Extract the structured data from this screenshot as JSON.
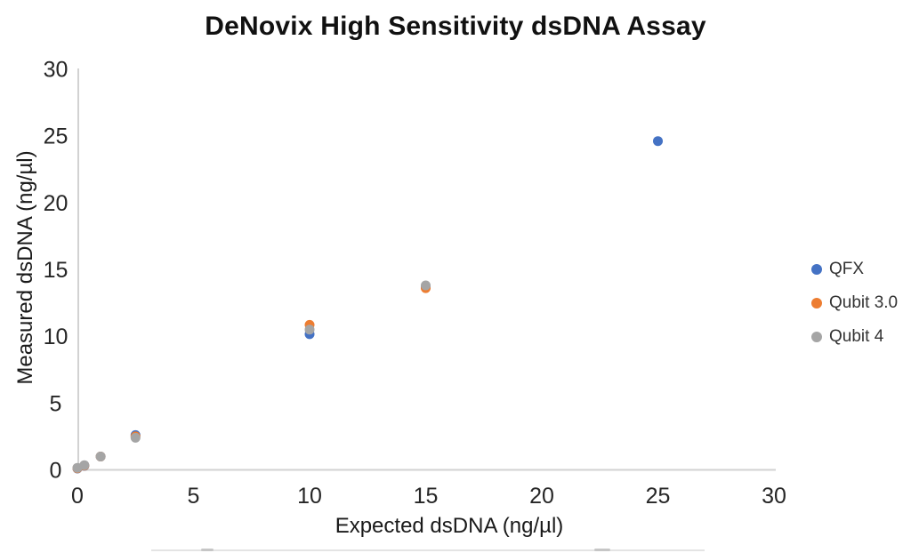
{
  "chart_data": {
    "type": "scatter",
    "title": "DeNovix High Sensitivity dsDNA Assay",
    "xlabel": "Expected dsDNA (ng/µl)",
    "ylabel": "Measured dsDNA (ng/µl)",
    "xlim": [
      0,
      30
    ],
    "ylim": [
      0,
      30
    ],
    "xticks": [
      0,
      5,
      10,
      15,
      20,
      25,
      30
    ],
    "yticks": [
      0,
      5,
      10,
      15,
      20,
      25,
      30
    ],
    "grid": false,
    "legend_position": "right",
    "axis_color": "#d2d2d2",
    "tick_label_color": "#262626",
    "series": [
      {
        "name": "QFX",
        "color": "#4472C4",
        "points": [
          [
            0,
            0.1
          ],
          [
            0.3,
            0.3
          ],
          [
            1,
            1.0
          ],
          [
            2.5,
            2.6
          ],
          [
            10,
            10.15
          ],
          [
            15,
            13.65
          ],
          [
            25,
            24.6
          ]
        ]
      },
      {
        "name": "Qubit 3.0",
        "color": "#ED7D31",
        "points": [
          [
            0,
            0.12
          ],
          [
            0.3,
            0.32
          ],
          [
            1,
            1.0
          ],
          [
            2.5,
            2.5
          ],
          [
            10,
            10.85
          ],
          [
            15,
            13.6
          ]
        ]
      },
      {
        "name": "Qubit 4",
        "color": "#A5A5A5",
        "points": [
          [
            0,
            0.15
          ],
          [
            0.3,
            0.35
          ],
          [
            1,
            1.0
          ],
          [
            2.5,
            2.4
          ],
          [
            10,
            10.5
          ],
          [
            15,
            13.8
          ]
        ]
      }
    ]
  }
}
